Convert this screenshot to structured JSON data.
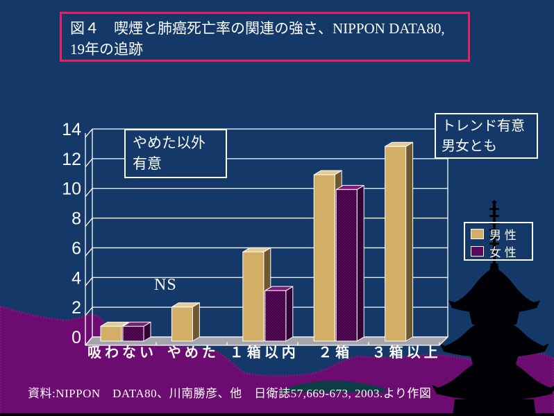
{
  "slide": {
    "title": {
      "line1": "図４　喫煙と肺癌死亡率の関連の強さ、NIPPON DATA80,",
      "line2": "19年の追跡"
    },
    "source_text": "資料:NIPPON　DATA80、川南勝彦、他　日衛誌57,669-673, 2003.より作図"
  },
  "annotations": {
    "significance_box": {
      "line1": "やめた以外",
      "line2": "有意"
    },
    "ns_label": "NS",
    "trend_box": {
      "line1": "トレンド有意",
      "line2": "男女とも"
    }
  },
  "legend": {
    "items": [
      {
        "label": "男 性",
        "color": "#D2AE66"
      },
      {
        "label": "女 性",
        "color": "#5A085C"
      }
    ]
  },
  "colors": {
    "background": "#143868",
    "title_border": "#EE1C63",
    "male_bar": "#D2AE66",
    "female_bar": "#5A085C",
    "mountain": "#6D0C70",
    "floor": "#A4A4AC",
    "text": "#FFFFFF"
  },
  "chart_data": {
    "type": "bar",
    "style": "3d-bars",
    "title": "",
    "xlabel": "",
    "ylabel": "",
    "categories": [
      "吸わない",
      "やめた",
      "１箱以内",
      "２箱",
      "３箱以上"
    ],
    "series": [
      {
        "name": "男性",
        "color": "#D2AE66",
        "values": [
          1.0,
          2.3,
          6.0,
          11.2,
          13.1
        ]
      },
      {
        "name": "女性",
        "color": "#5A085C",
        "values": [
          1.0,
          null,
          3.4,
          10.2,
          null
        ]
      }
    ],
    "ylim": [
      0,
      14
    ],
    "ytick_step": 2,
    "grid": true,
    "legend_position": "right"
  }
}
